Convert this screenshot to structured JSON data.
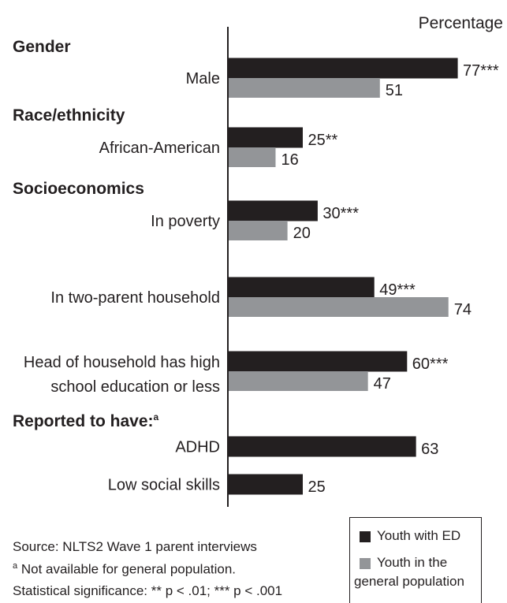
{
  "chart_data": {
    "type": "bar",
    "orientation": "horizontal",
    "xlabel": "Percentage",
    "xlim": [
      0,
      100
    ],
    "grid": false,
    "legend_position": "bottom-right",
    "groups": [
      {
        "section": "Gender",
        "categories": [
          {
            "label": [
              "Male"
            ],
            "values": [
              77,
              51
            ],
            "labels": [
              "77***",
              "51"
            ]
          }
        ]
      },
      {
        "section": "Race/ethnicity",
        "categories": [
          {
            "label": [
              "African-American"
            ],
            "values": [
              25,
              16
            ],
            "labels": [
              "25**",
              "16"
            ]
          }
        ]
      },
      {
        "section": "Socioeconomics",
        "categories": [
          {
            "label": [
              "In poverty"
            ],
            "values": [
              30,
              20
            ],
            "labels": [
              "30***",
              "20"
            ]
          },
          {
            "label": [
              "In two-parent household"
            ],
            "values": [
              49,
              74
            ],
            "labels": [
              "49***",
              "74"
            ]
          },
          {
            "label": [
              "Head of household has high",
              "school education or less"
            ],
            "values": [
              60,
              47
            ],
            "labels": [
              "60***",
              "47"
            ]
          }
        ]
      },
      {
        "section": "Reported to have:",
        "section_note": "a",
        "categories": [
          {
            "label": [
              "ADHD"
            ],
            "values": [
              63,
              null
            ],
            "labels": [
              "63",
              ""
            ]
          },
          {
            "label": [
              "Low social skills"
            ],
            "values": [
              25,
              null
            ],
            "labels": [
              "25",
              ""
            ]
          }
        ]
      }
    ],
    "series": [
      {
        "name": "Youth with ED",
        "color": "#231f20"
      },
      {
        "name": "Youth in the general population",
        "color": "#939598"
      }
    ]
  },
  "legend": {
    "items": [
      {
        "lines": [
          "Youth with ED"
        ],
        "color": "#231f20"
      },
      {
        "lines": [
          "Youth in the",
          "general population"
        ],
        "color": "#939598"
      }
    ]
  },
  "footnotes": {
    "source": "Source: NLTS2 Wave 1 parent interviews",
    "note_marker": "a",
    "note": " Not available for general population.",
    "significance": "Statistical significance: ** p < .01; *** p < .001"
  }
}
